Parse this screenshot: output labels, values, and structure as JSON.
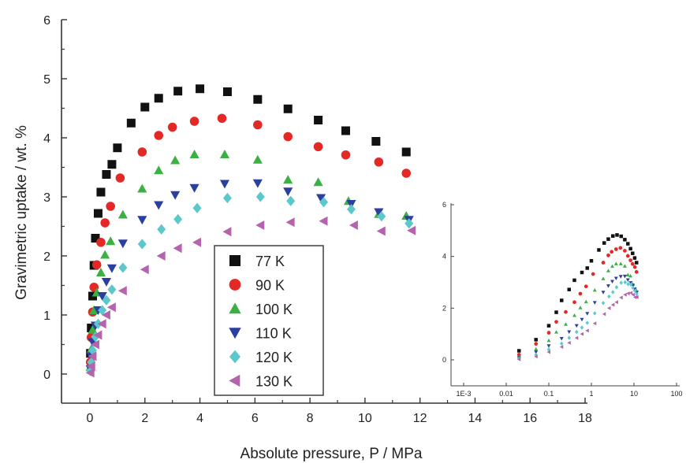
{
  "chart_data": [
    {
      "type": "scatter",
      "title": "",
      "xlabel": "Absolute pressure, P / MPa",
      "ylabel": "Gravimetric uptake / wt. %",
      "xlim": [
        -1,
        20
      ],
      "ylim": [
        -0.4,
        6
      ],
      "xticks": [
        0,
        2,
        4,
        6,
        8,
        10,
        12,
        14,
        16,
        18
      ],
      "yticks": [
        0,
        1,
        2,
        3,
        4,
        5,
        6
      ],
      "grid": false,
      "legend_position": "center-left",
      "series": [
        {
          "name": "77 K",
          "marker": "square",
          "color": "#111111",
          "x": [
            0.02,
            0.05,
            0.1,
            0.15,
            0.2,
            0.3,
            0.4,
            0.6,
            0.8,
            1.0,
            1.5,
            2.0,
            2.5,
            3.2,
            4.0,
            5.0,
            6.1,
            7.2,
            8.3,
            9.3,
            10.4,
            11.5
          ],
          "y": [
            0.35,
            0.78,
            1.32,
            1.84,
            2.3,
            2.72,
            3.08,
            3.38,
            3.55,
            3.83,
            4.25,
            4.52,
            4.67,
            4.79,
            4.83,
            4.78,
            4.65,
            4.49,
            4.3,
            4.12,
            3.94,
            3.76
          ]
        },
        {
          "name": "90 K",
          "marker": "circle",
          "color": "#e32826",
          "x": [
            0.02,
            0.05,
            0.1,
            0.15,
            0.25,
            0.4,
            0.55,
            0.75,
            1.1,
            1.9,
            2.5,
            3.0,
            3.8,
            4.8,
            6.1,
            7.2,
            8.3,
            9.3,
            10.5,
            11.5
          ],
          "y": [
            0.2,
            0.62,
            1.05,
            1.47,
            1.85,
            2.23,
            2.56,
            2.84,
            3.32,
            3.76,
            4.04,
            4.18,
            4.28,
            4.33,
            4.22,
            4.02,
            3.85,
            3.71,
            3.59,
            3.4
          ],
          "x_extra": [],
          "y_extra": []
        },
        {
          "name": "100 K",
          "marker": "triangle-up",
          "color": "#3bb143",
          "x": [
            0.02,
            0.05,
            0.1,
            0.15,
            0.25,
            0.4,
            0.55,
            0.75,
            1.2,
            1.9,
            2.5,
            3.1,
            3.8,
            4.9,
            6.1,
            7.2,
            8.3,
            9.4,
            10.5,
            11.5
          ],
          "y": [
            0.12,
            0.42,
            0.75,
            1.08,
            1.38,
            1.72,
            2.02,
            2.25,
            2.7,
            3.14,
            3.45,
            3.62,
            3.72,
            3.72,
            3.63,
            3.29,
            3.25,
            2.93,
            2.71,
            2.68
          ]
        },
        {
          "name": "110 K",
          "marker": "triangle-down",
          "color": "#2b3f9e",
          "x": [
            0.02,
            0.05,
            0.1,
            0.2,
            0.3,
            0.45,
            0.6,
            0.8,
            1.2,
            1.9,
            2.5,
            3.1,
            3.8,
            4.9,
            6.1,
            7.2,
            8.4,
            9.5,
            10.5,
            11.6
          ],
          "y": [
            0.08,
            0.3,
            0.54,
            0.82,
            1.08,
            1.32,
            1.56,
            1.79,
            2.21,
            2.61,
            2.86,
            3.03,
            3.15,
            3.22,
            3.23,
            3.09,
            2.98,
            2.88,
            2.74,
            2.61
          ]
        },
        {
          "name": "120 K",
          "marker": "diamond",
          "color": "#5cc8cc",
          "x": [
            0.02,
            0.05,
            0.1,
            0.2,
            0.3,
            0.45,
            0.6,
            0.8,
            1.2,
            1.9,
            2.6,
            3.2,
            3.9,
            5.0,
            6.2,
            7.3,
            8.5,
            9.5,
            10.6,
            11.6
          ],
          "y": [
            0.05,
            0.2,
            0.4,
            0.63,
            0.85,
            1.08,
            1.25,
            1.43,
            1.8,
            2.2,
            2.45,
            2.62,
            2.81,
            2.98,
            3.0,
            2.93,
            2.91,
            2.79,
            2.67,
            2.55
          ]
        },
        {
          "name": "130 K",
          "marker": "triangle-left",
          "color": "#b563ad",
          "x": [
            0.02,
            0.05,
            0.1,
            0.2,
            0.3,
            0.45,
            0.6,
            0.8,
            1.2,
            2.0,
            2.6,
            3.2,
            3.9,
            5.0,
            6.2,
            7.3,
            8.5,
            9.6,
            10.6,
            11.7
          ],
          "y": [
            0.02,
            0.13,
            0.3,
            0.5,
            0.66,
            0.85,
            1.0,
            1.13,
            1.41,
            1.77,
            2.0,
            2.13,
            2.23,
            2.41,
            2.52,
            2.57,
            2.59,
            2.52,
            2.42,
            2.43
          ]
        }
      ]
    },
    {
      "type": "scatter",
      "title": "",
      "xlabel": "",
      "ylabel": "",
      "x_scale": "log",
      "xlim": [
        0.001,
        100
      ],
      "ylim": [
        -0.6,
        6
      ],
      "xticks": [
        0.001,
        0.01,
        0.1,
        1,
        10,
        100
      ],
      "xtick_labels": [
        "1E-3",
        "0.01",
        "0.1",
        "1",
        "10",
        "100"
      ],
      "yticks": [
        0,
        2,
        4,
        6
      ],
      "grid": false,
      "note_series_same_as_main": true
    }
  ]
}
